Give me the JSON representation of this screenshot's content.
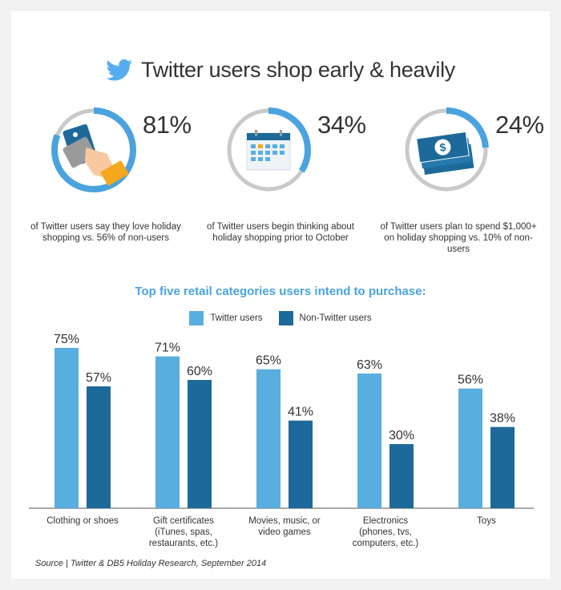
{
  "header": {
    "title": "Twitter users shop early & heavily",
    "icon": "twitter-bird-icon",
    "icon_color": "#55acee"
  },
  "stats": [
    {
      "value": "81%",
      "fraction": 0.81,
      "description": "of Twitter users say they love holiday shopping vs. 56% of non-users",
      "icon": "credit-card-hand-icon"
    },
    {
      "value": "34%",
      "fraction": 0.34,
      "description": "of Twitter users begin thinking about holiday shopping prior to October",
      "icon": "calendar-icon"
    },
    {
      "value": "24%",
      "fraction": 0.24,
      "description": "of Twitter users plan to spend $1,000+ on holiday shopping vs. 10% of non-users",
      "icon": "money-stack-icon"
    }
  ],
  "colors": {
    "twitter": "#59aee0",
    "non_twitter": "#1d6a9a",
    "ring_track": "#c9c9c9",
    "ring_fill": "#4aa3df",
    "chart_title": "#4aa3df"
  },
  "chart_data": {
    "type": "bar",
    "title": "Top five retail categories users intend to purchase:",
    "categories": [
      [
        "Clothing or shoes"
      ],
      [
        "Gift certificates",
        "(iTunes, spas,",
        "restaurants, etc.)"
      ],
      [
        "Movies, music, or",
        "video games"
      ],
      [
        "Electronics",
        "(phones, tvs,",
        "computers, etc.)"
      ],
      [
        "Toys"
      ]
    ],
    "series": [
      {
        "name": "Twitter users",
        "values": [
          75,
          71,
          65,
          63,
          56
        ]
      },
      {
        "name": "Non-Twitter users",
        "values": [
          57,
          60,
          41,
          30,
          38
        ]
      }
    ],
    "value_suffix": "%",
    "ylim": [
      0,
      80
    ],
    "legend": "top-center",
    "grid": false
  },
  "footer": {
    "source": "Source | Twitter & DB5 Holiday Research, September 2014"
  }
}
